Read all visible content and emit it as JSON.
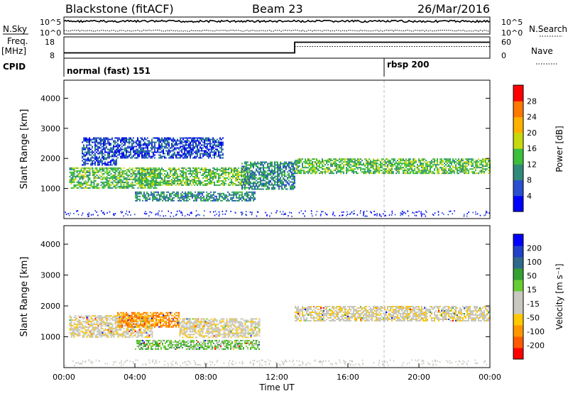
{
  "header": {
    "station": "Blackstone (fitACF)",
    "beam": "Beam 23",
    "date": "26/Mar/2016"
  },
  "nsky": {
    "label": "N.Sky",
    "tick_top": "10^5",
    "tick_bottom": "10^0"
  },
  "nsearch": {
    "label": "N.Search",
    "tick_top": "10^5",
    "tick_bottom": "10^0"
  },
  "freq": {
    "label_line1": "Freq.",
    "label_line2": "[MHz]",
    "tick_top": "18",
    "tick_bottom": "8"
  },
  "nave": {
    "label": "Nave",
    "tick_top": "60",
    "tick_bottom": "0"
  },
  "cpid": {
    "label": "CPID",
    "segments": [
      {
        "label": "normal (fast) 151",
        "start_hour": 0
      },
      {
        "label": "rbsp 200",
        "start_hour": 18
      }
    ]
  },
  "colors": {
    "power": [
      "#0000ff",
      "#2b4fcf",
      "#2f8a7a",
      "#3cbf3c",
      "#c8d80e",
      "#ffb000",
      "#ff7800",
      "#ff0000"
    ],
    "velocity": [
      "#ff0000",
      "#ff5a00",
      "#ff9600",
      "#ffc800",
      "#c8c8c0",
      "#c8c8c0",
      "#66cc33",
      "#33a033",
      "#2f6a8a",
      "#2040c8",
      "#0000ff"
    ]
  },
  "chart_data": [
    {
      "type": "heatmap",
      "name": "power",
      "ylabel": "Slant Range [km]",
      "xlabel": "Time UT",
      "xlim": [
        0,
        24
      ],
      "ylim": [
        0,
        4600
      ],
      "yticks": [
        "1000",
        "2000",
        "3000",
        "4000"
      ],
      "xticks": [
        "00:00",
        "04:00",
        "08:00",
        "12:00",
        "16:00",
        "20:00",
        "00:00"
      ],
      "colorbar": {
        "label": "Power [dB]",
        "ticks": [
          "4",
          "8",
          "12",
          "16",
          "20",
          "24",
          "28"
        ]
      },
      "bands": [
        {
          "t0": 0.3,
          "t1": 5.2,
          "r0": 1000,
          "r1": 1700,
          "level": 3
        },
        {
          "t0": 1.0,
          "t1": 3.0,
          "r0": 1800,
          "r1": 2700,
          "level": 1
        },
        {
          "t0": 3.0,
          "t1": 9.0,
          "r0": 2000,
          "r1": 2700,
          "level": 1
        },
        {
          "t0": 4.2,
          "t1": 10.5,
          "r0": 1100,
          "r1": 1700,
          "level": 3
        },
        {
          "t0": 4.0,
          "t1": 10.8,
          "r0": 600,
          "r1": 900,
          "level": 2
        },
        {
          "t0": 10.0,
          "t1": 13.0,
          "r0": 1000,
          "r1": 1900,
          "level": 2
        },
        {
          "t0": 13.0,
          "t1": 24.0,
          "r0": 1500,
          "r1": 2000,
          "level": 3
        }
      ]
    },
    {
      "type": "heatmap",
      "name": "velocity",
      "ylabel": "Slant Range [km]",
      "xlabel": "Time UT",
      "xlim": [
        0,
        24
      ],
      "ylim": [
        0,
        4600
      ],
      "yticks": [
        "1000",
        "2000",
        "3000",
        "4000"
      ],
      "xticks": [
        "00:00",
        "04:00",
        "08:00",
        "12:00",
        "16:00",
        "20:00",
        "00:00"
      ],
      "colorbar": {
        "label": "Velocity [m s⁻¹]",
        "ticks": [
          "200",
          "100",
          "50",
          "15",
          "-15",
          "-50",
          "-100",
          "-200"
        ]
      },
      "bands": [
        {
          "t0": 0.3,
          "t1": 5.0,
          "r0": 1000,
          "r1": 1700,
          "level": 4
        },
        {
          "t0": 3.0,
          "t1": 6.5,
          "r0": 1300,
          "r1": 1800,
          "level": 2
        },
        {
          "t0": 6.5,
          "t1": 11.0,
          "r0": 1000,
          "r1": 1600,
          "level": 4
        },
        {
          "t0": 4.0,
          "t1": 11.0,
          "r0": 600,
          "r1": 900,
          "level": 6
        },
        {
          "t0": 13.0,
          "t1": 24.0,
          "r0": 1500,
          "r1": 2000,
          "level": 4
        }
      ]
    }
  ],
  "time_series": {
    "nsky_level": 0.75,
    "nsearch_level": 0.2,
    "freq_steps": [
      {
        "t0": 0,
        "t1": 13,
        "level": 0.25
      },
      {
        "t0": 13,
        "t1": 24,
        "level": 0.75
      }
    ],
    "nave_steps": [
      {
        "t0": 13,
        "t1": 24,
        "level": 0.55
      }
    ]
  }
}
